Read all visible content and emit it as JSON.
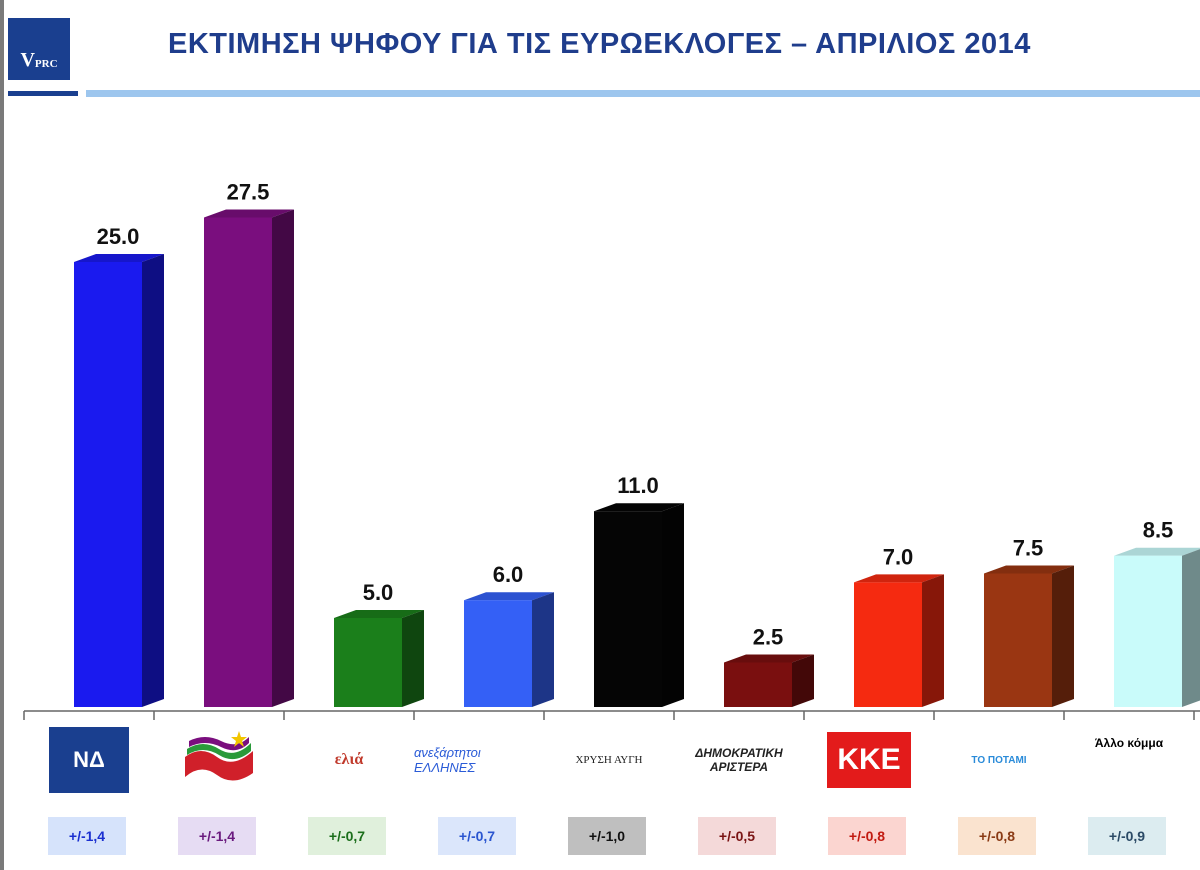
{
  "header": {
    "logo_letter": "V",
    "logo_rest": "PRC",
    "title": "ΕΚΤΙΜΗΣΗ ΨΗΦΟΥ ΓΙΑ ΤΙΣ ΕΥΡΩΕΚΛΟΓΕΣ – ΑΠΡΙΛΙΟΣ 2014"
  },
  "parties": [
    {
      "logo_text": "ΝΔ",
      "margin": "+/-1,4",
      "bar_color": "#1a1aef",
      "moe_bg": "#d6e3fb",
      "moe_fg": "#1a2fd0",
      "icon": "nd-logo"
    },
    {
      "logo_text": "",
      "margin": "+/-1,4",
      "bar_color": "#7a0e7e",
      "moe_bg": "#e6dcf3",
      "moe_fg": "#6a1a7e",
      "icon": "syriza-logo"
    },
    {
      "logo_text": "ελιά",
      "margin": "+/-0,7",
      "bar_color": "#1b7f1b",
      "moe_bg": "#e0f0dc",
      "moe_fg": "#1b6e1b",
      "icon": "elia-logo"
    },
    {
      "logo_text": "ανεξάρτητοι ΕΛΛΗΝΕΣ",
      "margin": "+/-0,7",
      "bar_color": "#3460f6",
      "moe_bg": "#dbe6fb",
      "moe_fg": "#2a55d0",
      "icon": "anexartitoi-logo"
    },
    {
      "logo_text": "ΧΡΥΣΗ ΑΥΓΗ",
      "margin": "+/-1,0",
      "bar_color": "#050505",
      "moe_bg": "#bfbfbf",
      "moe_fg": "#111111",
      "icon": "xrysi-avgi-logo"
    },
    {
      "logo_text": "ΔΗΜΟΚΡΑΤΙΚΗ ΑΡΙΣΤΕΡΑ",
      "margin": "+/-0,5",
      "bar_color": "#7a0f0f",
      "moe_bg": "#f4d9d9",
      "moe_fg": "#7a1414",
      "icon": "dimar-logo"
    },
    {
      "logo_text": "ΚΚΕ",
      "margin": "+/-0,8",
      "bar_color": "#f52a10",
      "moe_bg": "#fbd5d0",
      "moe_fg": "#c21a10",
      "icon": "kke-logo"
    },
    {
      "logo_text": "ΤΟ ΠΟΤΑΜΙ",
      "margin": "+/-0,8",
      "bar_color": "#9a3612",
      "moe_bg": "#fae3cf",
      "moe_fg": "#8a3a14",
      "icon": "potami-logo"
    },
    {
      "logo_text": "Άλλο κόμμα",
      "margin": "+/-0,9",
      "bar_color": "#c9fbfa",
      "moe_bg": "#dcecf0",
      "moe_fg": "#2b4a66",
      "icon": "other-party"
    }
  ],
  "chart_data": {
    "type": "bar",
    "title": "ΕΚΤΙΜΗΣΗ ΨΗΦΟΥ ΓΙΑ ΤΙΣ ΕΥΡΩΕΚΛΟΓΕΣ – ΑΠΡΙΛΙΟΣ 2014",
    "categories": [
      "ΝΔ",
      "ΣΥΡΙΖΑ",
      "ελιά",
      "Ανεξάρτητοι Έλληνες",
      "Χρυσή Αυγή",
      "Δημοκρατική Αριστερά",
      "ΚΚΕ",
      "Το Ποτάμι",
      "Άλλο κόμμα"
    ],
    "values": [
      25.0,
      27.5,
      5.0,
      6.0,
      11.0,
      2.5,
      7.0,
      7.5,
      8.5
    ],
    "value_labels": [
      "25.0",
      "27.5",
      "5.0",
      "6.0",
      "11.0",
      "2.5",
      "7.0",
      "7.5",
      "8.5"
    ],
    "ylim": [
      0,
      30
    ],
    "grid": false,
    "style": "3d"
  }
}
